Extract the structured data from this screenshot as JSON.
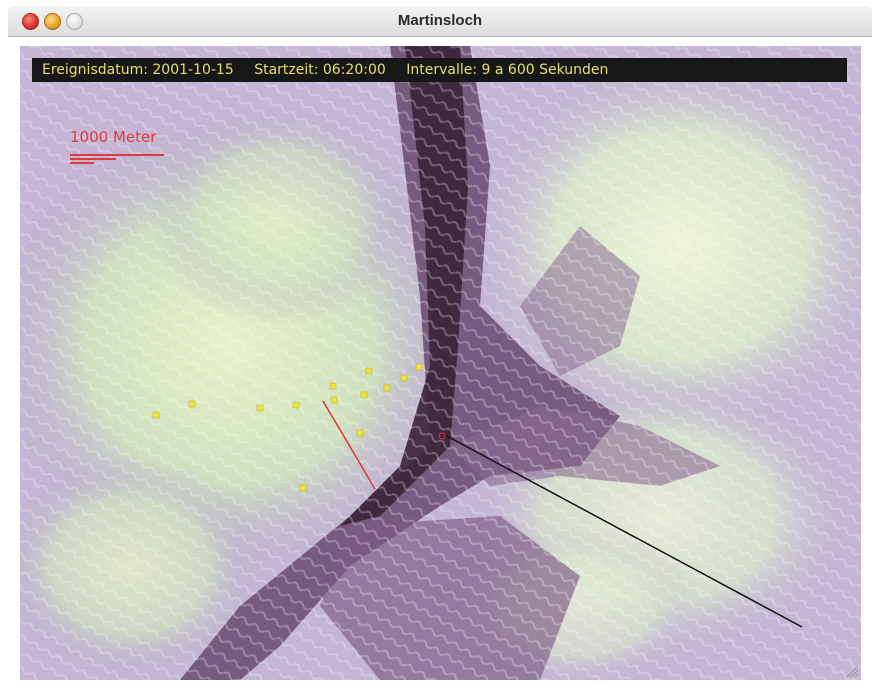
{
  "window": {
    "title": "Martinsloch"
  },
  "info": {
    "event_date": "Ereignisdatum: 2001-10-15",
    "start_time": "Startzeit: 06:20:00",
    "intervals": "Intervalle: 9 a 600 Sekunden"
  },
  "scale": {
    "label": "1000 Meter"
  },
  "colors": {
    "info_text": "#e6e06a",
    "scale_red": "#e03a3a",
    "marker_yellow": "#f0e43a",
    "ray_black": "#111111",
    "ray_red": "#d8383a"
  },
  "icons": {
    "close": "close-button-icon",
    "minimize": "minimize-button-icon",
    "zoom": "zoom-button-icon",
    "resize": "resize-grip-icon"
  }
}
